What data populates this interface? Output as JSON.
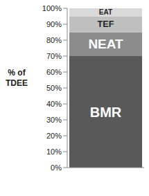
{
  "chart_data": {
    "type": "bar",
    "stacked": true,
    "categories": [
      null
    ],
    "y_label": "% of TDEE",
    "series": [
      {
        "name": "BMR",
        "color": "#595959",
        "values": [
          70
        ]
      },
      {
        "name": "NEAT",
        "color": "#8c8c8c",
        "values": [
          15
        ]
      },
      {
        "name": "TEF",
        "color": "#bfbfbf",
        "values": [
          10
        ]
      },
      {
        "name": "EAT",
        "color": "#d9d9d9",
        "values": [
          5
        ]
      }
    ],
    "ylim": [
      0,
      100
    ],
    "yticks": [
      {
        "value": 0,
        "label": "0%"
      },
      {
        "value": 10,
        "label": "10%"
      },
      {
        "value": 20,
        "label": "20%"
      },
      {
        "value": 30,
        "label": "30%"
      },
      {
        "value": 40,
        "label": "40%"
      },
      {
        "value": 50,
        "label": "50%"
      },
      {
        "value": 60,
        "label": "60%"
      },
      {
        "value": 70,
        "label": "70%"
      },
      {
        "value": 80,
        "label": "80%"
      },
      {
        "value": 90,
        "label": "90%"
      },
      {
        "value": 100,
        "label": "100%"
      }
    ],
    "grid": false
  }
}
